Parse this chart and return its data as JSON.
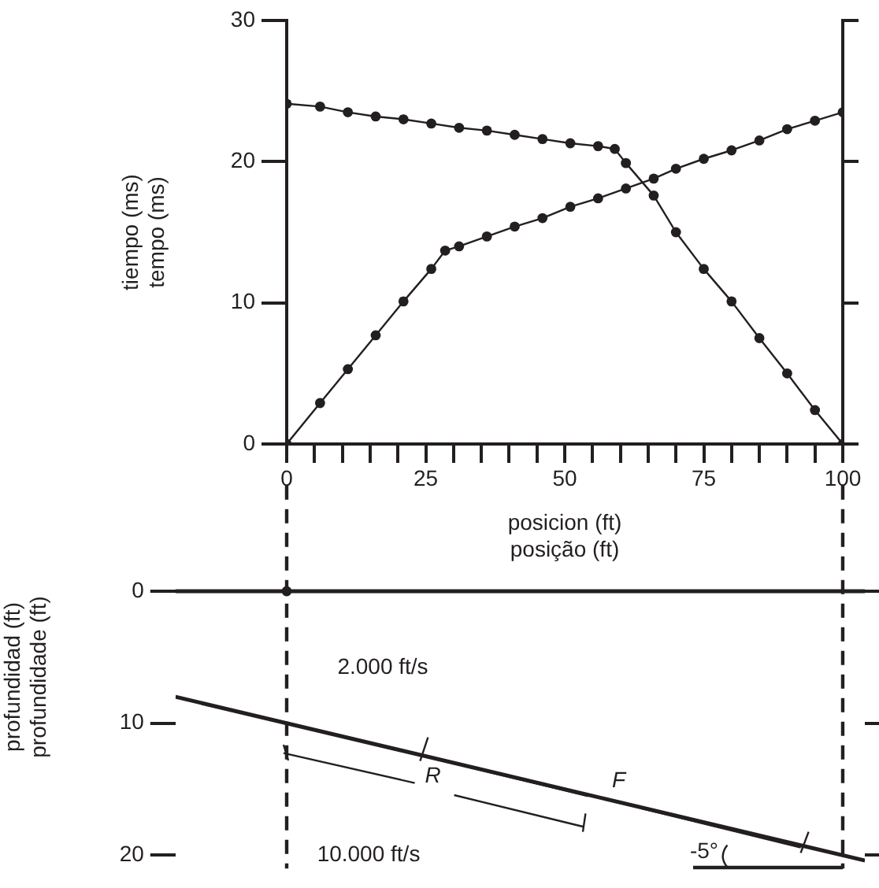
{
  "chart_data": [
    {
      "type": "line",
      "xlabel": "posicion (ft)\nposição (ft)",
      "ylabel": "tiempo (ms)\ntempo (ms)",
      "xlim": [
        0,
        100
      ],
      "ylim": [
        0,
        30
      ],
      "marker": "circle",
      "xticks": [
        0,
        {
          "value": 5,
          "label": null
        },
        {
          "value": 10,
          "label": null
        },
        {
          "value": 15,
          "label": null
        },
        {
          "value": 20,
          "label": null
        },
        25,
        {
          "value": 30,
          "label": null
        },
        {
          "value": 35,
          "label": null
        },
        {
          "value": 40,
          "label": null
        },
        {
          "value": 45,
          "label": null
        },
        50,
        {
          "value": 55,
          "label": null
        },
        {
          "value": 60,
          "label": null
        },
        {
          "value": 65,
          "label": null
        },
        {
          "value": 70,
          "label": null
        },
        75,
        {
          "value": 80,
          "label": null
        },
        {
          "value": 85,
          "label": null
        },
        {
          "value": 90,
          "label": null
        },
        {
          "value": 95,
          "label": null
        },
        100
      ],
      "yticks": [
        0,
        10,
        20,
        30
      ],
      "series": [
        {
          "color": "#231f20",
          "x": [
            0,
            6,
            11,
            16,
            21,
            26,
            28.5,
            31,
            36,
            41,
            46,
            51,
            56,
            61,
            66,
            70,
            75,
            80,
            85,
            90,
            95,
            100
          ],
          "values": [
            0,
            2.9,
            5.3,
            7.7,
            10.1,
            12.4,
            13.7,
            14.0,
            14.7,
            15.4,
            16.0,
            16.8,
            17.4,
            18.1,
            18.8,
            19.5,
            20.2,
            20.8,
            21.5,
            22.3,
            22.9,
            23.5
          ]
        },
        {
          "color": "#231f20",
          "x": [
            0,
            6,
            11,
            16,
            21,
            26,
            31,
            36,
            41,
            46,
            51,
            56,
            59,
            61,
            66,
            70,
            75,
            80,
            85,
            90,
            95,
            100
          ],
          "values": [
            24.1,
            23.9,
            23.5,
            23.2,
            23.0,
            22.7,
            22.4,
            22.2,
            21.9,
            21.6,
            21.3,
            21.1,
            20.9,
            19.9,
            17.6,
            15.0,
            12.4,
            10.1,
            7.5,
            5.0,
            2.4,
            0
          ]
        }
      ]
    },
    {
      "type": "line",
      "ylabel": "profundidad (ft)\nprofundidade (ft)",
      "xlim": [
        -20,
        104
      ],
      "xticks": [
        0,
        25,
        50,
        75,
        100
      ],
      "ylim": [
        21,
        -8
      ],
      "yticks": [
        0,
        10,
        20
      ],
      "tick_labels": "y",
      "marker": "none",
      "series": [
        {
          "color": "#231f20",
          "x": [
            -20,
            104
          ],
          "values": [
            0,
            0
          ]
        },
        {
          "color": "#231f20",
          "x": [
            -20,
            104
          ],
          "values": [
            8.0,
            20.4
          ]
        },
        {
          "type": "scatter",
          "marker": "circle",
          "color": "#231f20",
          "x": [
            0
          ],
          "values": [
            0
          ]
        }
      ],
      "ref_lines": [
        {
          "axis": "x",
          "value": 0,
          "line_style": "dashed",
          "color": "#231f20"
        },
        {
          "axis": "x",
          "value": 100,
          "line_style": "dashed",
          "color": "#231f20"
        }
      ],
      "annotations": [
        "2.000 ft/s",
        "10.000 ft/s",
        {
          "text": "R",
          "x": 26,
          "y": 12.6
        },
        {
          "text": "F",
          "x": 58,
          "y": 15.8
        },
        "-5°"
      ]
    }
  ]
}
